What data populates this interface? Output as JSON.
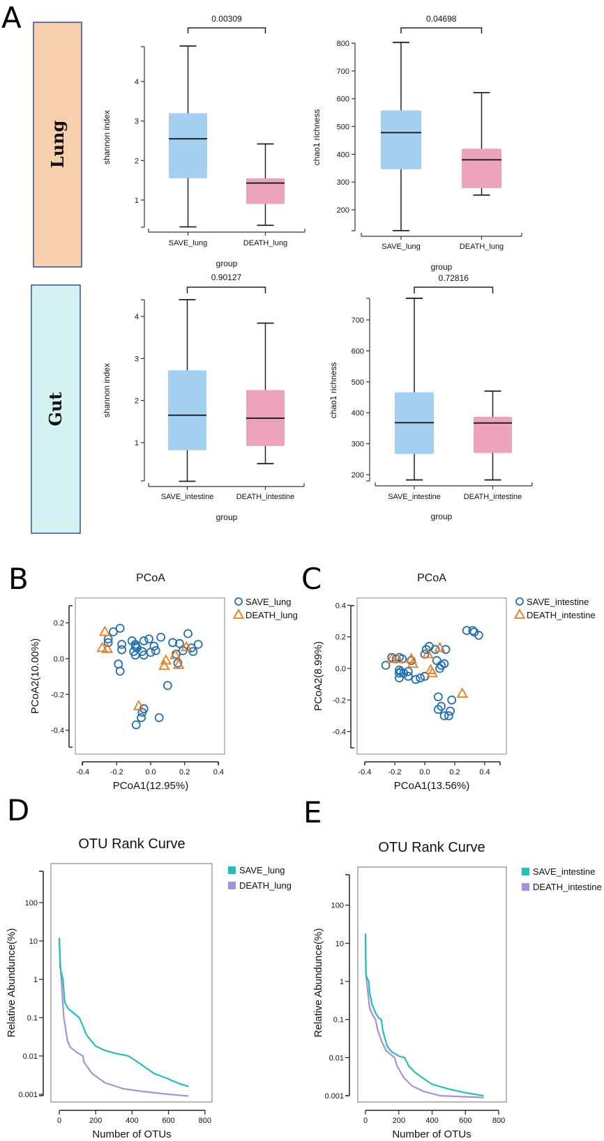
{
  "panels": {
    "A": "A",
    "B": "B",
    "C": "C",
    "D": "D",
    "E": "E"
  },
  "panel_a": {
    "row_labels": [
      "Lung",
      "Gut"
    ],
    "row_colors": [
      "#f8cfac",
      "#d4f2f1"
    ],
    "row_border": "#2e4fa0"
  },
  "colors": {
    "save_box": "#a3cff0",
    "death_box": "#eca3bb",
    "save_point": "#1f6fb4",
    "death_point": "#f07a1a",
    "save_line": "#1fbfbf",
    "death_line": "#a98ee0"
  },
  "chart_data": [
    {
      "type": "box",
      "panel": "A",
      "row": "Lung",
      "p_value": "0.00309",
      "xlabel": "group",
      "ylabel": "shannon index",
      "yticks": [
        1,
        2,
        3,
        4
      ],
      "categories": [
        "SAVE_lung",
        "DEATH_lung"
      ],
      "series": [
        {
          "name": "SAVE_lung",
          "whisker_low": 0.32,
          "q1": 1.55,
          "median": 2.55,
          "q3": 3.2,
          "whisker_high": 4.9
        },
        {
          "name": "DEATH_lung",
          "whisker_low": 0.36,
          "q1": 0.9,
          "median": 1.43,
          "q3": 1.55,
          "whisker_high": 2.42
        }
      ]
    },
    {
      "type": "box",
      "panel": "A",
      "row": "Lung",
      "p_value": "0.04698",
      "xlabel": "group",
      "ylabel": "chao1 richness",
      "yticks": [
        200,
        300,
        400,
        500,
        600,
        700,
        800
      ],
      "categories": [
        "SAVE_lung",
        "DEATH_lung"
      ],
      "series": [
        {
          "name": "SAVE_lung",
          "whisker_low": 125,
          "q1": 346,
          "median": 478,
          "q3": 558,
          "whisker_high": 803
        },
        {
          "name": "DEATH_lung",
          "whisker_low": 253,
          "q1": 278,
          "median": 380,
          "q3": 420,
          "whisker_high": 622
        }
      ]
    },
    {
      "type": "box",
      "panel": "A",
      "row": "Gut",
      "p_value": "0.90127",
      "xlabel": "group",
      "ylabel": "shannon index",
      "yticks": [
        1,
        2,
        3,
        4
      ],
      "categories": [
        "SAVE_intestine",
        "DEATH_intestine"
      ],
      "series": [
        {
          "name": "SAVE_intestine",
          "whisker_low": 0.08,
          "q1": 0.82,
          "median": 1.65,
          "q3": 2.72,
          "whisker_high": 4.4
        },
        {
          "name": "DEATH_intestine",
          "whisker_low": 0.5,
          "q1": 0.92,
          "median": 1.58,
          "q3": 2.25,
          "whisker_high": 3.84
        }
      ]
    },
    {
      "type": "box",
      "panel": "A",
      "row": "Gut",
      "p_value": "0.72816",
      "xlabel": "group",
      "ylabel": "chao1 richness",
      "yticks": [
        200,
        300,
        400,
        500,
        600,
        700
      ],
      "categories": [
        "SAVE_intestine",
        "DEATH_intestine"
      ],
      "series": [
        {
          "name": "SAVE_intestine",
          "whisker_low": 183,
          "q1": 267,
          "median": 368,
          "q3": 466,
          "whisker_high": 770
        },
        {
          "name": "DEATH_intestine",
          "whisker_low": 183,
          "q1": 270,
          "median": 367,
          "q3": 387,
          "whisker_high": 470
        }
      ]
    },
    {
      "type": "scatter",
      "panel": "B",
      "title": "PCoA",
      "xlabel": "PCoA1(12.95%)",
      "ylabel": "PCoA2(10.00%)",
      "xticks": [
        "-0.4",
        "-0.2",
        "0.0",
        "0.2",
        "0.4"
      ],
      "yticks": [
        "0.2",
        "0.0",
        "-0.2",
        "-0.4"
      ],
      "xlim": [
        -0.4,
        0.4
      ],
      "ylim": [
        -0.5,
        0.3
      ],
      "legend": "top-right-outside",
      "series": [
        {
          "name": "SAVE_lung",
          "marker": "circle",
          "points": [
            [
              -0.22,
              0.15
            ],
            [
              -0.18,
              0.17
            ],
            [
              -0.25,
              0.11
            ],
            [
              -0.25,
              0.09
            ],
            [
              -0.17,
              0.08
            ],
            [
              -0.17,
              0.05
            ],
            [
              -0.19,
              -0.03
            ],
            [
              -0.18,
              -0.07
            ],
            [
              -0.11,
              0.1
            ],
            [
              -0.09,
              0.08
            ],
            [
              -0.09,
              0.07
            ],
            [
              -0.08,
              0.06
            ],
            [
              -0.1,
              0.04
            ],
            [
              -0.09,
              0.02
            ],
            [
              -0.05,
              0.04
            ],
            [
              -0.04,
              0.02
            ],
            [
              -0.04,
              0.1
            ],
            [
              -0.01,
              0.11
            ],
            [
              0.02,
              0.07
            ],
            [
              0.0,
              0.035
            ],
            [
              0.03,
              0.045
            ],
            [
              0.06,
              0.12
            ],
            [
              0.13,
              0.09
            ],
            [
              0.17,
              0.085
            ],
            [
              0.19,
              0.045
            ],
            [
              0.22,
              0.14
            ],
            [
              0.24,
              0.06
            ],
            [
              0.25,
              0.04
            ],
            [
              0.28,
              0.08
            ],
            [
              0.15,
              0.025
            ],
            [
              0.16,
              -0.025
            ],
            [
              0.1,
              -0.15
            ],
            [
              -0.04,
              -0.28
            ],
            [
              -0.05,
              -0.3
            ],
            [
              -0.055,
              -0.33
            ],
            [
              -0.085,
              -0.37
            ],
            [
              0.05,
              -0.33
            ]
          ]
        },
        {
          "name": "DEATH_lung",
          "marker": "triangle",
          "points": [
            [
              -0.27,
              0.15
            ],
            [
              -0.285,
              0.06
            ],
            [
              -0.255,
              0.055
            ],
            [
              0.09,
              -0.01
            ],
            [
              0.08,
              -0.04
            ],
            [
              0.145,
              0.02
            ],
            [
              0.165,
              -0.035
            ],
            [
              0.21,
              0.065
            ],
            [
              -0.07,
              -0.265
            ]
          ]
        }
      ]
    },
    {
      "type": "scatter",
      "panel": "C",
      "title": "PCoA",
      "xlabel": "PCoA1(13.56%)",
      "ylabel": "PCoA2(8.99%)",
      "xticks": [
        "-0.4",
        "-0.2",
        "0.0",
        "0.2",
        "0.4"
      ],
      "yticks": [
        "0.4",
        "0.2",
        "0.0",
        "-0.2",
        "-0.4"
      ],
      "xlim": [
        -0.4,
        0.5
      ],
      "ylim": [
        -0.5,
        0.4
      ],
      "legend": "top-right-outside",
      "series": [
        {
          "name": "SAVE_intestine",
          "marker": "circle",
          "points": [
            [
              -0.26,
              0.02
            ],
            [
              -0.22,
              0.07
            ],
            [
              -0.19,
              0.06
            ],
            [
              -0.17,
              0.07
            ],
            [
              -0.15,
              0.06
            ],
            [
              -0.17,
              -0.01
            ],
            [
              -0.16,
              -0.02
            ],
            [
              -0.17,
              -0.03
            ],
            [
              -0.17,
              -0.06
            ],
            [
              -0.14,
              -0.03
            ],
            [
              -0.11,
              -0.02
            ],
            [
              -0.11,
              -0.05
            ],
            [
              -0.09,
              0.05
            ],
            [
              -0.06,
              -0.07
            ],
            [
              -0.03,
              -0.06
            ],
            [
              0.0,
              -0.05
            ],
            [
              0.0,
              0.09
            ],
            [
              0.01,
              0.12
            ],
            [
              0.03,
              0.14
            ],
            [
              0.07,
              0.12
            ],
            [
              0.14,
              0.12
            ],
            [
              0.08,
              0.05
            ],
            [
              0.1,
              0.0
            ],
            [
              0.11,
              0.02
            ],
            [
              0.13,
              0.03
            ],
            [
              0.28,
              0.24
            ],
            [
              0.32,
              0.24
            ],
            [
              0.33,
              0.23
            ],
            [
              0.36,
              0.21
            ],
            [
              0.09,
              -0.18
            ],
            [
              0.18,
              -0.2
            ],
            [
              0.11,
              -0.24
            ],
            [
              0.09,
              -0.26
            ],
            [
              0.17,
              -0.27
            ],
            [
              0.13,
              -0.3
            ],
            [
              0.16,
              -0.3
            ]
          ]
        },
        {
          "name": "DEATH_intestine",
          "marker": "triangle",
          "points": [
            [
              -0.22,
              0.06
            ],
            [
              -0.18,
              0.06
            ],
            [
              -0.09,
              0.06
            ],
            [
              -0.08,
              0.03
            ],
            [
              0.02,
              0.09
            ],
            [
              0.1,
              0.13
            ],
            [
              0.04,
              -0.01
            ],
            [
              0.05,
              -0.03
            ],
            [
              0.25,
              -0.16
            ]
          ]
        }
      ]
    },
    {
      "type": "line",
      "panel": "D",
      "title": "OTU Rank Curve",
      "xlabel": "Number of OTUs",
      "ylabel": "Relative Abundunce(%)",
      "yscale": "log",
      "xticks": [
        "0",
        "200",
        "400",
        "600",
        "800"
      ],
      "yticks": [
        "100",
        "10",
        "1",
        "0.1",
        "0.01",
        "0.001"
      ],
      "xlim": [
        0,
        800
      ],
      "ylim": [
        0.0009,
        600
      ],
      "legend": "top-right-outside",
      "series": [
        {
          "name": "SAVE_lung",
          "points": [
            [
              0,
              12
            ],
            [
              5,
              2
            ],
            [
              20,
              1
            ],
            [
              30,
              0.25
            ],
            [
              50,
              0.17
            ],
            [
              80,
              0.13
            ],
            [
              110,
              0.1
            ],
            [
              130,
              0.06
            ],
            [
              150,
              0.035
            ],
            [
              200,
              0.018
            ],
            [
              250,
              0.014
            ],
            [
              300,
              0.012
            ],
            [
              380,
              0.01
            ],
            [
              450,
              0.006
            ],
            [
              520,
              0.0035
            ],
            [
              600,
              0.0025
            ],
            [
              660,
              0.0019
            ],
            [
              710,
              0.0016
            ]
          ]
        },
        {
          "name": "DEATH_lung",
          "points": [
            [
              0,
              12
            ],
            [
              5,
              3
            ],
            [
              15,
              0.5
            ],
            [
              25,
              0.1
            ],
            [
              45,
              0.025
            ],
            [
              60,
              0.017
            ],
            [
              100,
              0.012
            ],
            [
              130,
              0.01
            ],
            [
              135,
              0.007
            ],
            [
              180,
              0.0035
            ],
            [
              250,
              0.002
            ],
            [
              350,
              0.0014
            ],
            [
              450,
              0.0012
            ],
            [
              600,
              0.001
            ],
            [
              710,
              0.0009
            ]
          ]
        }
      ]
    },
    {
      "type": "line",
      "panel": "E",
      "title": "OTU Rank Curve",
      "xlabel": "Number of OTUs",
      "ylabel": "Relative Abundunce(%)",
      "yscale": "log",
      "xticks": [
        "0",
        "200",
        "400",
        "600",
        "800"
      ],
      "yticks": [
        "100",
        "10",
        "1",
        "0.1",
        "0.01",
        "0.001"
      ],
      "xlim": [
        0,
        800
      ],
      "ylim": [
        0.0009,
        600
      ],
      "legend": "top-right-outside",
      "series": [
        {
          "name": "SAVE_intestine",
          "points": [
            [
              0,
              18
            ],
            [
              3,
              1.5
            ],
            [
              10,
              1.2
            ],
            [
              20,
              1.0
            ],
            [
              25,
              0.5
            ],
            [
              40,
              0.25
            ],
            [
              60,
              0.15
            ],
            [
              80,
              0.11
            ],
            [
              95,
              0.1
            ],
            [
              105,
              0.05
            ],
            [
              130,
              0.02
            ],
            [
              160,
              0.014
            ],
            [
              200,
              0.011
            ],
            [
              235,
              0.01
            ],
            [
              260,
              0.006
            ],
            [
              300,
              0.004
            ],
            [
              350,
              0.0028
            ],
            [
              400,
              0.002
            ],
            [
              500,
              0.0015
            ],
            [
              600,
              0.0012
            ],
            [
              710,
              0.001
            ]
          ]
        },
        {
          "name": "DEATH_intestine",
          "points": [
            [
              0,
              18
            ],
            [
              3,
              1.5
            ],
            [
              15,
              0.5
            ],
            [
              25,
              0.2
            ],
            [
              40,
              0.14
            ],
            [
              60,
              0.1
            ],
            [
              75,
              0.05
            ],
            [
              100,
              0.025
            ],
            [
              125,
              0.015
            ],
            [
              175,
              0.01
            ],
            [
              190,
              0.006
            ],
            [
              230,
              0.003
            ],
            [
              280,
              0.0018
            ],
            [
              350,
              0.0013
            ],
            [
              450,
              0.001
            ],
            [
              710,
              0.0009
            ]
          ]
        }
      ]
    }
  ]
}
